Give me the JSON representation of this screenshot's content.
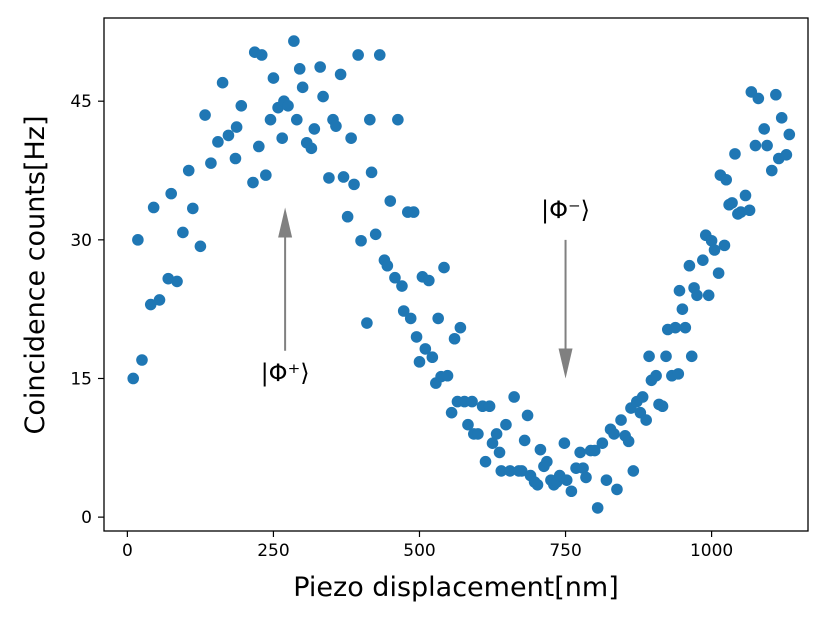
{
  "chart_data": {
    "type": "scatter",
    "xlabel": "Piezo displacement[nm]",
    "ylabel": "Coincidence counts[Hz]",
    "xlim": [
      -40,
      1165
    ],
    "ylim": [
      -1.5,
      54
    ],
    "xticks": [
      0,
      250,
      500,
      750,
      1000
    ],
    "yticks": [
      0,
      15,
      30,
      45
    ],
    "grid": false,
    "marker_color": "#1f77b4",
    "annotations": [
      {
        "text": "|Φ⁺⟩",
        "x": 270,
        "y": 16,
        "arrow_from": [
          270,
          18
        ],
        "arrow_to": [
          270,
          33.5
        ]
      },
      {
        "text": "|Φ⁻⟩",
        "x": 750,
        "y": 33,
        "arrow_from": [
          750,
          30
        ],
        "arrow_to": [
          750,
          15
        ]
      }
    ],
    "series": [
      {
        "points": [
          [
            10,
            15
          ],
          [
            18,
            30
          ],
          [
            25,
            17
          ],
          [
            40,
            23
          ],
          [
            45,
            33.5
          ],
          [
            55,
            23.5
          ],
          [
            70,
            25.8
          ],
          [
            75,
            35
          ],
          [
            85,
            25.5
          ],
          [
            95,
            30.8
          ],
          [
            105,
            37.5
          ],
          [
            112,
            33.4
          ],
          [
            125,
            29.3
          ],
          [
            133,
            43.5
          ],
          [
            143,
            38.3
          ],
          [
            155,
            40.6
          ],
          [
            163,
            47
          ],
          [
            173,
            41.3
          ],
          [
            185,
            38.8
          ],
          [
            187,
            42.2
          ],
          [
            195,
            44.5
          ],
          [
            215,
            36.2
          ],
          [
            218,
            50.3
          ],
          [
            225,
            40.1
          ],
          [
            230,
            50
          ],
          [
            237,
            37
          ],
          [
            245,
            43
          ],
          [
            250,
            47.5
          ],
          [
            258,
            44.3
          ],
          [
            265,
            41
          ],
          [
            268,
            45
          ],
          [
            275,
            44.5
          ],
          [
            285,
            51.5
          ],
          [
            290,
            43
          ],
          [
            295,
            48.5
          ],
          [
            300,
            46.5
          ],
          [
            307,
            40.5
          ],
          [
            315,
            39.9
          ],
          [
            320,
            42
          ],
          [
            330,
            48.7
          ],
          [
            335,
            45.5
          ],
          [
            345,
            36.7
          ],
          [
            352,
            43
          ],
          [
            357,
            42.3
          ],
          [
            365,
            47.9
          ],
          [
            370,
            36.8
          ],
          [
            377,
            32.5
          ],
          [
            383,
            41
          ],
          [
            388,
            36
          ],
          [
            395,
            50
          ],
          [
            400,
            29.9
          ],
          [
            410,
            21
          ],
          [
            415,
            43
          ],
          [
            418,
            37.3
          ],
          [
            425,
            30.6
          ],
          [
            432,
            50
          ],
          [
            440,
            27.8
          ],
          [
            445,
            27.2
          ],
          [
            450,
            34.2
          ],
          [
            458,
            25.9
          ],
          [
            463,
            43
          ],
          [
            470,
            25
          ],
          [
            473,
            22.3
          ],
          [
            480,
            33
          ],
          [
            485,
            21.5
          ],
          [
            490,
            33
          ],
          [
            495,
            19.5
          ],
          [
            500,
            16.8
          ],
          [
            505,
            26
          ],
          [
            510,
            18.2
          ],
          [
            516,
            25.6
          ],
          [
            522,
            17.3
          ],
          [
            528,
            14.5
          ],
          [
            532,
            21.5
          ],
          [
            537,
            15.2
          ],
          [
            542,
            27
          ],
          [
            548,
            15.3
          ],
          [
            555,
            11.3
          ],
          [
            560,
            19.3
          ],
          [
            565,
            12.5
          ],
          [
            570,
            20.5
          ],
          [
            577,
            12.5
          ],
          [
            583,
            10
          ],
          [
            590,
            12.5
          ],
          [
            593,
            9
          ],
          [
            600,
            9
          ],
          [
            608,
            12
          ],
          [
            613,
            6
          ],
          [
            620,
            12
          ],
          [
            625,
            8
          ],
          [
            632,
            9
          ],
          [
            637,
            7
          ],
          [
            640,
            5
          ],
          [
            648,
            10
          ],
          [
            655,
            5
          ],
          [
            662,
            13
          ],
          [
            670,
            5
          ],
          [
            675,
            5
          ],
          [
            680,
            8.3
          ],
          [
            685,
            11
          ],
          [
            690,
            4.5
          ],
          [
            697,
            3.8
          ],
          [
            702,
            3.5
          ],
          [
            707,
            7.3
          ],
          [
            713,
            5.5
          ],
          [
            718,
            6
          ],
          [
            725,
            4
          ],
          [
            730,
            3.5
          ],
          [
            735,
            3.8
          ],
          [
            740,
            4.5
          ],
          [
            748,
            8
          ],
          [
            752,
            4
          ],
          [
            760,
            2.8
          ],
          [
            768,
            5.3
          ],
          [
            775,
            7
          ],
          [
            780,
            5.3
          ],
          [
            785,
            4.3
          ],
          [
            793,
            7.2
          ],
          [
            800,
            7.2
          ],
          [
            805,
            1
          ],
          [
            813,
            8
          ],
          [
            820,
            4
          ],
          [
            827,
            9.5
          ],
          [
            833,
            9
          ],
          [
            838,
            3
          ],
          [
            845,
            10.5
          ],
          [
            852,
            8.8
          ],
          [
            858,
            8.2
          ],
          [
            862,
            11.8
          ],
          [
            866,
            5
          ],
          [
            872,
            12.5
          ],
          [
            878,
            11.3
          ],
          [
            882,
            13
          ],
          [
            888,
            10.5
          ],
          [
            893,
            17.4
          ],
          [
            897,
            14.8
          ],
          [
            905,
            15.3
          ],
          [
            910,
            12.2
          ],
          [
            916,
            12
          ],
          [
            922,
            17.4
          ],
          [
            925,
            20.3
          ],
          [
            932,
            15.3
          ],
          [
            938,
            20.5
          ],
          [
            943,
            15.5
          ],
          [
            945,
            24.5
          ],
          [
            950,
            22.5
          ],
          [
            955,
            20.5
          ],
          [
            962,
            27.2
          ],
          [
            966,
            17.4
          ],
          [
            970,
            24.8
          ],
          [
            975,
            24
          ],
          [
            985,
            27.8
          ],
          [
            990,
            30.5
          ],
          [
            995,
            24
          ],
          [
            1000,
            29.9
          ],
          [
            1005,
            28.9
          ],
          [
            1012,
            26.4
          ],
          [
            1015,
            37
          ],
          [
            1022,
            29.4
          ],
          [
            1025,
            36.5
          ],
          [
            1030,
            33.8
          ],
          [
            1035,
            34
          ],
          [
            1040,
            39.3
          ],
          [
            1045,
            32.8
          ],
          [
            1050,
            33
          ],
          [
            1058,
            34.8
          ],
          [
            1065,
            33.2
          ],
          [
            1068,
            46
          ],
          [
            1075,
            40.2
          ],
          [
            1080,
            45.3
          ],
          [
            1090,
            42
          ],
          [
            1095,
            40.2
          ],
          [
            1103,
            37.5
          ],
          [
            1110,
            45.7
          ],
          [
            1115,
            38.8
          ],
          [
            1120,
            43.2
          ],
          [
            1128,
            39.2
          ],
          [
            1133,
            41.4
          ]
        ]
      }
    ]
  }
}
